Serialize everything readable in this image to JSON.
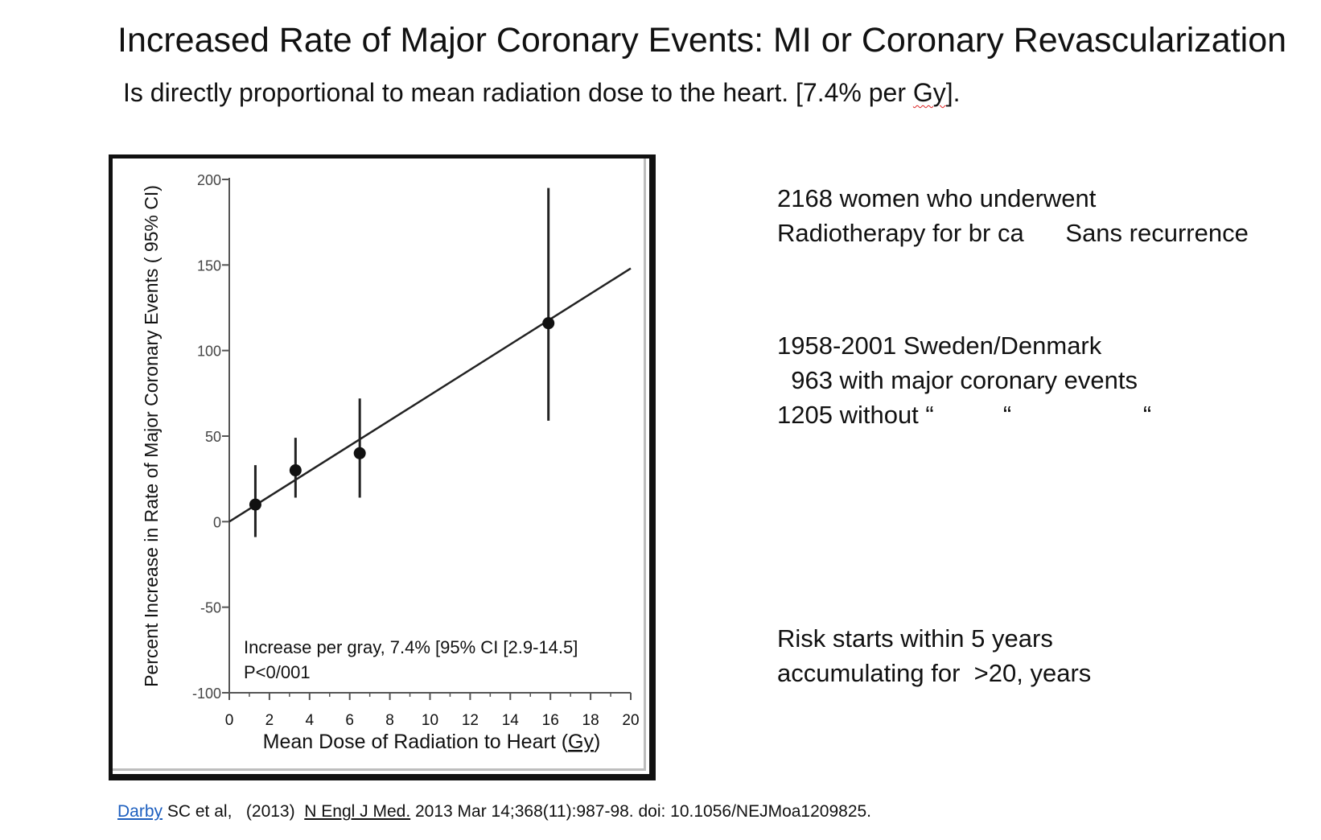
{
  "header": {
    "title": "Increased Rate of Major Coronary Events: MI or Coronary Revascularization",
    "subtitle_prefix": "Is directly proportional to mean radiation dose to the heart. [7.4% per ",
    "subtitle_unit": "Gy",
    "subtitle_suffix": "]."
  },
  "chart_data": {
    "type": "scatter",
    "xlabel_prefix": "Mean Dose of Radiation to Heart (",
    "xlabel_unit": "Gy",
    "xlabel_suffix": ")",
    "ylabel": "Percent Increase in Rate of Major Coronary Events ( 95% CI)",
    "xlim": [
      0,
      20
    ],
    "ylim": [
      -100,
      200
    ],
    "x_ticks": [
      0,
      2,
      4,
      6,
      8,
      10,
      12,
      14,
      16,
      18,
      20
    ],
    "y_ticks": [
      -100,
      -50,
      0,
      50,
      100,
      150,
      200
    ],
    "y_tick_labels": [
      "-100",
      "-50",
      "0",
      "50",
      "100",
      "150",
      "200"
    ],
    "points": [
      {
        "x": 1.3,
        "y": 10,
        "lo": -9,
        "hi": 33
      },
      {
        "x": 3.3,
        "y": 30,
        "lo": 14,
        "hi": 49
      },
      {
        "x": 6.5,
        "y": 40,
        "lo": 14,
        "hi": 72
      },
      {
        "x": 15.9,
        "y": 116,
        "lo": 59,
        "hi": 195
      }
    ],
    "trend_line": {
      "slope": 7.4,
      "intercept": 0,
      "x_start": 0,
      "x_end": 20
    },
    "annotation": [
      "Increase per gray, 7.4% [95% CI [2.9-14.5]",
      "P<0/001"
    ],
    "grid": false,
    "colors": {
      "marks": "#111111",
      "axis": "#555555"
    }
  },
  "side_text": {
    "block1": [
      "2168 women who underwent",
      "Radiotherapy for br ca      Sans recurrence"
    ],
    "block2": [
      "1958-2001 Sweden/Denmark",
      "  963 with major coronary events",
      "1205 without “          “                   “"
    ],
    "block3": [
      "Risk starts within 5 years",
      "accumulating for  >20, years"
    ]
  },
  "citation": {
    "author_link": "Darby",
    "authors_rest": " SC et al,   (2013)  ",
    "journal": "N Engl J Med.",
    "details": " 2013 Mar 14;368(11):987-98. doi: 10.1056/NEJMoa1209825."
  }
}
